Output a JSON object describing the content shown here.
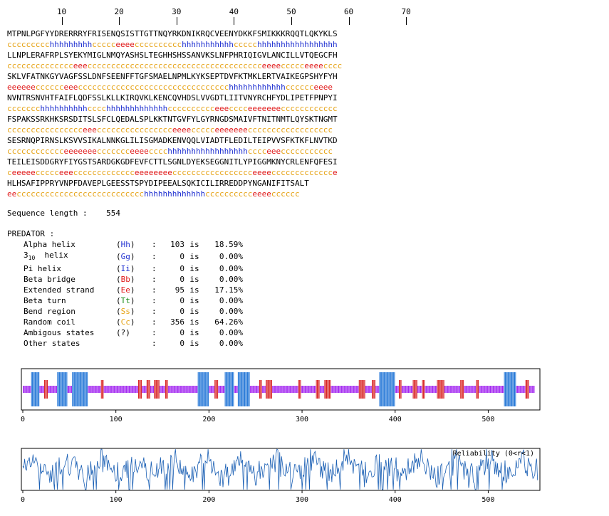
{
  "ruler": {
    "labels": [
      "10",
      "20",
      "30",
      "40",
      "50",
      "60",
      "70"
    ]
  },
  "sequence_rows": [
    {
      "seq": "MTPNLPGFYYDRERRRYFRISENQSISTTGTTNQYRKDNIKRQCVEENYDKKFSMIKKKRQQTLQKYKLS",
      "ss": "ccccccccchhhhhhhhhccccceeeecccccccccchhhhhhhhhhhccccchhhhhhhhhhhhhhhhh"
    },
    {
      "seq": "LLNPLERAFRPLSYEKYMIGLNMQYASHSLTEGHHSHSSANVKSLNFPHRIQIGVLANCILLVTQEGCFH",
      "ss": "cccccccccccccceeeccccccccccccccccccccccccccccccccccccceeeeccccceeeecccc"
    },
    {
      "seq": "SKLVFATNKGYVAGFSSLDNFSEENFFTGFSMAELNPMLKYKSEPTDVFKTMKLERTVAIKEGPSHYFYH",
      "ss": "eeeeeecccccceeecccccccccccccccccccccccccccccccchhhhhhhhhhhhcccccceeee"
    },
    {
      "seq": "NVNTRSNVHTFAIFLQDFSSLKLLKIRQVKLKENCQVHDSLVVGDTLIITVNYRCHFYDLIPETFPNPYI",
      "ss": "ccccccchhhhhhhhhhcccchhhhhhhhhhhhhcccccccccceeecccceeeeeeecccccccccccc"
    },
    {
      "seq": "FSPAKSSRKHKSRSDITSLSFCLQEDALSPLKKTNTGVFYLGYRNGDSMAIVFTNITNMTLQYSKTNGMT",
      "ss": "cccccccccccccccceeecccccccccccccccceeeeccccceeeeeeecccccccccccccccccc"
    },
    {
      "seq": "SESRNQPIRNSLKSVVSIKALNNKGLILISGMADKENVQQLVIADTFLEDILTEIPVVSFKTKFLNVTKD",
      "ss": "cccccccccccceeeeeeeccccccceeeecccchhhhhhhhhhhhhhhhhcccceeeccccccccccc"
    },
    {
      "seq": "TEILEISDDGRYFIYGSTSARDGKGDFEVFCTTLSGNLDYEKSEGGNITLYPIGGMKNYCRLENFQFESI",
      "ss": "ceeeeeccccceeeccccccccccccceeeeeeeeccccccccccccccccceeeeccccccccccccce"
    },
    {
      "seq": "HLHSAFIPPRYVNPFDAVEPLGEESSTSPYDIPEEALSQKICILIRREDDPYNGANIFITSALT",
      "ss": "eeccccccccccccccccccccccccccchhhhhhhhhhhhhcccccccccceeeecccccc"
    }
  ],
  "seq_length": {
    "label": "Sequence length :",
    "value": "554"
  },
  "predator": {
    "title": "PREDATOR :",
    "rows": [
      {
        "name": "Alpha helix",
        "code": "Hh",
        "count": "103",
        "is": "is",
        "pct": "18.59%"
      },
      {
        "name": "helix",
        "prefix": "3",
        "sub": "10",
        "code": "Gg",
        "count": "0",
        "is": "is",
        "pct": "0.00%"
      },
      {
        "name": "Pi helix",
        "code": "Ii",
        "count": "0",
        "is": "is",
        "pct": "0.00%"
      },
      {
        "name": "Beta bridge",
        "code": "Bb",
        "count": "0",
        "is": "is",
        "pct": "0.00%"
      },
      {
        "name": "Extended strand",
        "code": "Ee",
        "count": "95",
        "is": "is",
        "pct": "17.15%"
      },
      {
        "name": "Beta turn",
        "code": "Tt",
        "count": "0",
        "is": "is",
        "pct": "0.00%"
      },
      {
        "name": "Bend region",
        "code": "Ss",
        "count": "0",
        "is": "is",
        "pct": "0.00%"
      },
      {
        "name": "Random coil",
        "code": "Cc",
        "count": "356",
        "is": "is",
        "pct": "64.26%"
      },
      {
        "name": "Ambigous states",
        "code": "?",
        "count": "0",
        "is": "is",
        "pct": "0.00%"
      },
      {
        "name": "Other states",
        "code": "",
        "count": "0",
        "is": "is",
        "pct": "0.00%"
      }
    ]
  },
  "colors": {
    "helix": "#1e73d6",
    "strand": "#d81e1e",
    "coil": "#a020f0",
    "rel_line": "#1a5fb4"
  },
  "ss_graph": {
    "xticks": [
      "0",
      "100",
      "200",
      "300",
      "400",
      "500"
    ],
    "xmax": 554
  },
  "rel_graph": {
    "xticks": [
      "0",
      "100",
      "200",
      "300",
      "400",
      "500"
    ],
    "label": "Reliability (0<r<1)"
  }
}
